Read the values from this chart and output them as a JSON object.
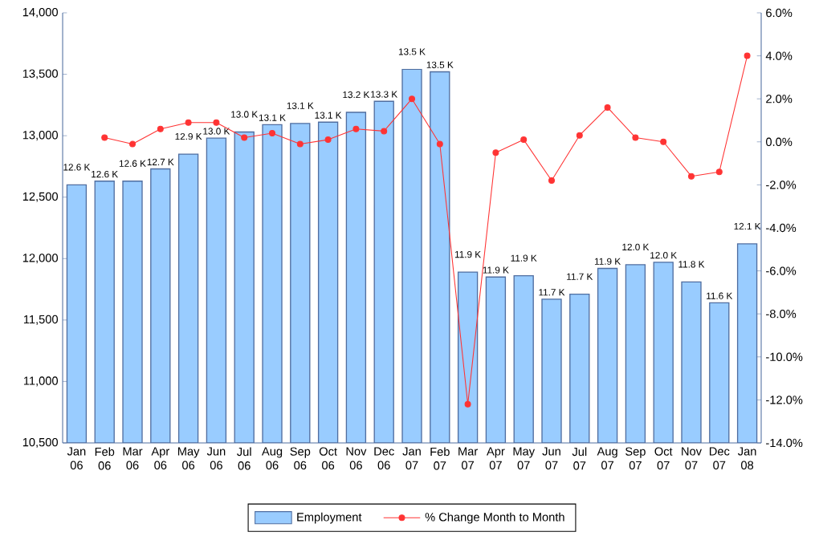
{
  "chart_data": {
    "type": "bar",
    "categories": [
      "Jan 06",
      "Feb 06",
      "Mar 06",
      "Apr 06",
      "May 06",
      "Jun 06",
      "Jul 06",
      "Aug 06",
      "Sep 06",
      "Oct 06",
      "Nov 06",
      "Dec 06",
      "Jan 07",
      "Feb 07",
      "Mar 07",
      "Apr 07",
      "May 07",
      "Jun 07",
      "Jul 07",
      "Aug 07",
      "Sep 07",
      "Oct 07",
      "Nov 07",
      "Dec 07",
      "Jan 08"
    ],
    "series": [
      {
        "name": "Employment",
        "color": "#99ccff",
        "values": [
          12600,
          12630,
          12630,
          12730,
          12850,
          12980,
          13030,
          13090,
          13100,
          13110,
          13190,
          13280,
          13540,
          13520,
          11890,
          11850,
          11860,
          11670,
          11710,
          11920,
          11950,
          11970,
          11810,
          11640,
          12120
        ],
        "value_labels": [
          "12.6 K",
          "12.6 K",
          "12.6 K",
          "12.7 K",
          "12.9 K",
          "13.0 K",
          "13.0 K",
          "13.1 K",
          "13.1 K",
          "13.1 K",
          "13.2 K",
          "13.3 K",
          "13.5 K",
          "13.5 K",
          "11.9 K",
          "11.9 K",
          "11.9 K",
          "11.7 K",
          "11.7 K",
          "11.9 K",
          "12.0 K",
          "12.0 K",
          "11.8 K",
          "11.6 K",
          "12.1 K"
        ]
      },
      {
        "name": "% Change Month to Month",
        "type": "line",
        "axis": "y2",
        "color": "#ff3333",
        "marker": "circle",
        "values": [
          null,
          0.2,
          -0.1,
          0.6,
          0.9,
          0.9,
          0.2,
          0.4,
          -0.1,
          0.1,
          0.6,
          0.5,
          2.0,
          -0.1,
          -12.2,
          -0.5,
          0.1,
          -1.8,
          0.3,
          1.6,
          0.2,
          0.0,
          -1.6,
          -1.4,
          4.0
        ]
      }
    ],
    "ylim": [
      10500,
      14000
    ],
    "yticks": [
      {
        "value": 10500,
        "label": "10,500"
      },
      {
        "value": 11000,
        "label": "11,000"
      },
      {
        "value": 11500,
        "label": "11,500"
      },
      {
        "value": 12000,
        "label": "12,000"
      },
      {
        "value": 12500,
        "label": "12,500"
      },
      {
        "value": 13000,
        "label": "13,000"
      },
      {
        "value": 13500,
        "label": "13,500"
      },
      {
        "value": 14000,
        "label": "14,000"
      }
    ],
    "y2lim": [
      -14,
      6
    ],
    "y2ticks": [
      {
        "value": -14,
        "label": "-14.0%"
      },
      {
        "value": -12,
        "label": "-12.0%"
      },
      {
        "value": -10,
        "label": "-10.0%"
      },
      {
        "value": -8,
        "label": "-8.0%"
      },
      {
        "value": -6,
        "label": "-6.0%"
      },
      {
        "value": -4,
        "label": "-4.0%"
      },
      {
        "value": -2,
        "label": "-2.0%"
      },
      {
        "value": 0,
        "label": "0.0%"
      },
      {
        "value": 2,
        "label": "2.0%"
      },
      {
        "value": 4,
        "label": "4.0%"
      },
      {
        "value": 6,
        "label": "6.0%"
      }
    ],
    "grid": false,
    "legend": "bottom"
  }
}
